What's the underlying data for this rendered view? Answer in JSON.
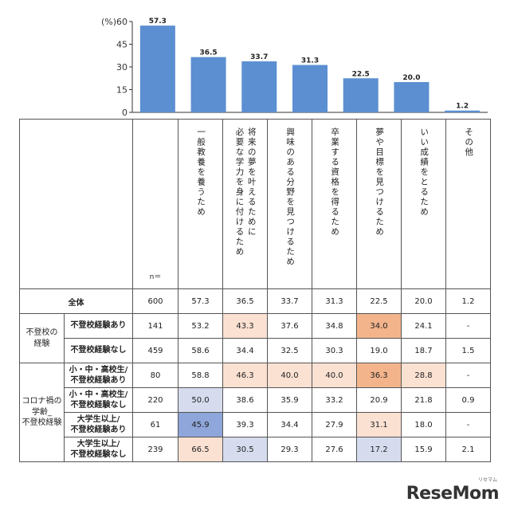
{
  "chart_data": {
    "type": "bar",
    "yunit": "(%)",
    "ylim": [
      0,
      60
    ],
    "yticks": [
      "0",
      "15",
      "30",
      "45",
      "60"
    ],
    "categories": [
      "一般教養を養うため",
      "将来の夢を叶えるために\n必要な学力を身に付けるため",
      "興味のある分野を見つけるため",
      "卒業する資格を得るため",
      "夢や目標を見つけるため",
      "いい成績をとるため",
      "その他"
    ],
    "values": [
      57.3,
      36.5,
      33.7,
      31.3,
      22.5,
      20.0,
      1.2
    ],
    "value_labels": [
      "57.3",
      "36.5",
      "33.7",
      "31.3",
      "22.5",
      "20.0",
      "1.2"
    ],
    "bar_color": "#5b8fd1"
  },
  "table": {
    "n_header": "n＝",
    "rows": [
      {
        "group": "",
        "label": "全体",
        "n": "600",
        "cells": [
          "57.3",
          "36.5",
          "33.7",
          "31.3",
          "22.5",
          "20.0",
          "1.2"
        ],
        "shade": [
          "",
          "",
          "",
          "",
          "",
          "",
          ""
        ]
      },
      {
        "group": "不登校の\n経験",
        "label": "不登校経験あり",
        "n": "141",
        "cells": [
          "53.2",
          "43.3",
          "37.6",
          "34.8",
          "34.0",
          "24.1",
          "-"
        ],
        "shade": [
          "",
          "#fbe1d2",
          "",
          "",
          "#f3b48c",
          "",
          ""
        ]
      },
      {
        "group": "",
        "label": "不登校経験なし",
        "n": "459",
        "cells": [
          "58.6",
          "34.4",
          "32.5",
          "30.3",
          "19.0",
          "18.7",
          "1.5"
        ],
        "shade": [
          "",
          "",
          "",
          "",
          "",
          "",
          ""
        ]
      },
      {
        "group": "コロナ禍の\n学齢_\n不登校経験",
        "label": "小・中・高校生/\n不登校経験あり",
        "n": "80",
        "cells": [
          "58.8",
          "46.3",
          "40.0",
          "40.0",
          "36.3",
          "28.8",
          "-"
        ],
        "shade": [
          "",
          "#fbe1d2",
          "#fbe1d2",
          "#fbe1d2",
          "#f3b48c",
          "#fbe1d2",
          ""
        ]
      },
      {
        "group": "",
        "label": "小・中・高校生/\n不登校経験なし",
        "n": "220",
        "cells": [
          "50.0",
          "38.6",
          "35.9",
          "33.2",
          "20.9",
          "21.8",
          "0.9"
        ],
        "shade": [
          "#d6dcee",
          "",
          "",
          "",
          "",
          "",
          ""
        ]
      },
      {
        "group": "",
        "label": "大学生以上/\n不登校経験あり",
        "n": "61",
        "cells": [
          "45.9",
          "39.3",
          "34.4",
          "27.9",
          "31.1",
          "18.0",
          "-"
        ],
        "shade": [
          "#8ea6d9",
          "",
          "",
          "",
          "#fbe1d2",
          "",
          ""
        ]
      },
      {
        "group": "",
        "label": "大学生以上/\n不登校経験なし",
        "n": "239",
        "cells": [
          "66.5",
          "30.5",
          "29.3",
          "27.6",
          "17.2",
          "15.9",
          "2.1"
        ],
        "shade": [
          "#fbe1d2",
          "#d6dcee",
          "",
          "",
          "#d6dcee",
          "",
          ""
        ]
      }
    ]
  },
  "logo": {
    "text": "ReseMom",
    "kana": "リセマム"
  }
}
